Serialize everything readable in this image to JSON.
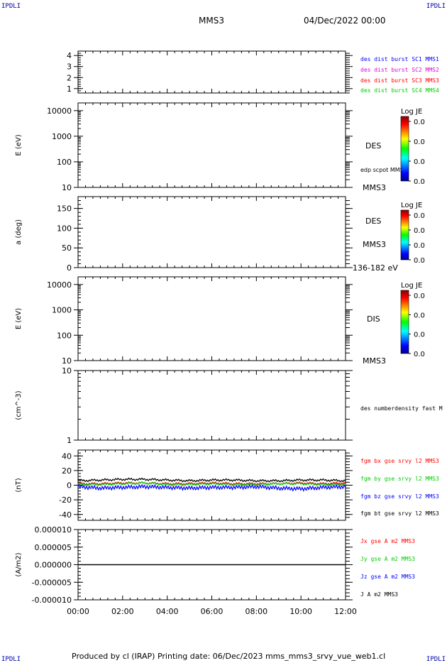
{
  "corner_label": "IPDLI",
  "header": {
    "spacecraft": "MMS3",
    "datetime": "04/Dec/2022 00:00"
  },
  "footer": "Produced by cl (IRAP)   Printing date: 06/Dec/2023   mms_mms3_srvy_vue_web1.cl",
  "colors": {
    "blue": "#0000ff",
    "magenta": "#dd00dd",
    "red": "#ff0000",
    "green": "#00cc00",
    "black": "#000000"
  },
  "chart_data": [
    {
      "type": "line",
      "panel": "availability",
      "ylabel": "",
      "ylim": [
        0.6,
        4.4
      ],
      "yticks": [
        "1",
        "2",
        "3",
        "4"
      ],
      "legend": [
        {
          "label": "des dist burst SC1 MMS1",
          "color": "#0000ff"
        },
        {
          "label": "des dist burst SC2 MMS2",
          "color": "#dd00dd"
        },
        {
          "label": "des dist burst SC3 MMS3",
          "color": "#ff0000"
        },
        {
          "label": "des dist burst SC4 MMS4",
          "color": "#00cc00"
        }
      ],
      "series": []
    },
    {
      "type": "heatmap",
      "panel": "des-energy-spectrogram",
      "ylabel": "E (eV)",
      "scale": "log",
      "yticks": [
        "10",
        "100",
        "1000",
        "10000"
      ],
      "side_labels": [
        "DES",
        "edp scpot MMS3",
        "MMS3"
      ],
      "colorbar": {
        "title": "Log JE",
        "ticks": [
          "0.0",
          "0.0",
          "0.0",
          "0.0"
        ]
      }
    },
    {
      "type": "heatmap",
      "panel": "des-pitch-angle",
      "ylabel": "a (deg)",
      "ylim": [
        0,
        180
      ],
      "yticks": [
        "0",
        "50",
        "100",
        "150"
      ],
      "side_labels": [
        "DES",
        "MMS3",
        "136-182 eV"
      ],
      "colorbar": {
        "title": "Log JE",
        "ticks": [
          "0.0",
          "0.0",
          "0.0",
          "0.0"
        ]
      }
    },
    {
      "type": "heatmap",
      "panel": "dis-energy-spectrogram",
      "ylabel": "E (eV)",
      "scale": "log",
      "yticks": [
        "10",
        "100",
        "1000",
        "10000"
      ],
      "side_labels": [
        "DIS",
        "MMS3"
      ],
      "colorbar": {
        "title": "Log JE",
        "ticks": [
          "0.0",
          "0.0",
          "0.0",
          "0.0"
        ]
      }
    },
    {
      "type": "line",
      "panel": "density",
      "ylabel": "(cm^-3)",
      "scale": "log",
      "yticks": [
        "1",
        "10"
      ],
      "legend": [
        {
          "label": "des numberdensity fast M",
          "color": "#000000"
        }
      ],
      "series": []
    },
    {
      "type": "line",
      "panel": "magnetic-field",
      "ylabel": "(nT)",
      "ylim": [
        -48,
        48
      ],
      "yticks": [
        "-40",
        "-20",
        "0",
        "20",
        "40"
      ],
      "legend": [
        {
          "label": "fgm bx gse srvy l2 MMS3",
          "color": "#ff0000"
        },
        {
          "label": "fgm by gse srvy l2 MMS3",
          "color": "#00cc00"
        },
        {
          "label": "fgm bz gse srvy l2 MMS3",
          "color": "#0000ff"
        },
        {
          "label": "fgm bt gse srvy l2 MMS3",
          "color": "#000000"
        }
      ],
      "series": [
        {
          "name": "fgm bt gse srvy l2 MMS3",
          "color": "#000000",
          "x": [
            0,
            1,
            2,
            3,
            4,
            5,
            6,
            7,
            8,
            9,
            10,
            11,
            12
          ],
          "values": [
            6,
            7,
            8,
            8,
            7,
            6,
            7,
            7,
            6,
            6,
            7,
            7,
            6
          ]
        },
        {
          "name": "fgm bx gse srvy l2 MMS3",
          "color": "#ff0000",
          "x": [
            0,
            1,
            2,
            3,
            4,
            5,
            6,
            7,
            8,
            9,
            10,
            11,
            12
          ],
          "values": [
            2,
            2,
            3,
            3,
            2,
            2,
            3,
            2,
            2,
            2,
            3,
            2,
            3
          ]
        },
        {
          "name": "fgm by gse srvy l2 MMS3",
          "color": "#00cc00",
          "x": [
            0,
            1,
            2,
            3,
            4,
            5,
            6,
            7,
            8,
            9,
            10,
            11,
            12
          ],
          "values": [
            1,
            1,
            2,
            3,
            1,
            1,
            2,
            1,
            1,
            2,
            2,
            1,
            1
          ]
        },
        {
          "name": "fgm bz gse srvy l2 MMS3",
          "color": "#0000ff",
          "x": [
            0,
            1,
            2,
            3,
            4,
            5,
            6,
            7,
            8,
            9,
            10,
            11,
            12
          ],
          "values": [
            -2,
            -4,
            -3,
            -2,
            -3,
            -4,
            -3,
            -3,
            -2,
            -4,
            -5,
            -3,
            -2
          ]
        }
      ]
    },
    {
      "type": "line",
      "panel": "current-density",
      "ylabel": "(A/m2)",
      "ylim": [
        -1e-05,
        1e-05
      ],
      "yticks": [
        "-0.000010",
        "-0.000005",
        "0.000000",
        "0.000005",
        "0.000010"
      ],
      "legend": [
        {
          "label": "Jx gse A m2 MMS3",
          "color": "#ff0000"
        },
        {
          "label": "Jy gse A m2 MMS3",
          "color": "#00cc00"
        },
        {
          "label": "Jz gse A m2 MMS3",
          "color": "#0000ff"
        },
        {
          "label": "J A m2 MMS3",
          "color": "#000000"
        }
      ],
      "series": [
        {
          "name": "J A m2 MMS3",
          "color": "#000000",
          "x": [
            0,
            2,
            4,
            6,
            8,
            10,
            12
          ],
          "values": [
            0,
            0,
            0,
            0,
            0,
            0,
            0
          ]
        }
      ]
    }
  ],
  "xaxis": {
    "range_hours": [
      0,
      12
    ],
    "ticks": [
      "00:00",
      "02:00",
      "04:00",
      "06:00",
      "08:00",
      "10:00",
      "12:00"
    ]
  }
}
